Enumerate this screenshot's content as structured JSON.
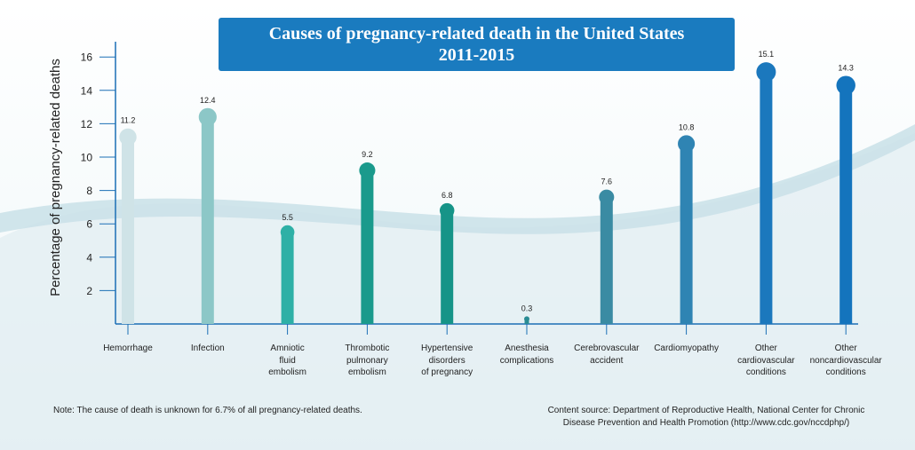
{
  "chart_data": {
    "type": "bar",
    "title_lines": [
      "Causes of pregnancy-related death in the United States",
      "2011-2015"
    ],
    "ylabel": "Percentage of pregnancy-related deaths",
    "xlabel": "",
    "ylim": [
      0,
      17
    ],
    "yticks": [
      2,
      4,
      6,
      8,
      10,
      12,
      14,
      16
    ],
    "categories": [
      [
        "Hemorrhage"
      ],
      [
        "Infection"
      ],
      [
        "Amniotic",
        "fluid",
        "embolism"
      ],
      [
        "Thrombotic",
        "pulmonary",
        "embolism"
      ],
      [
        "Hypertensive",
        "disorders",
        "of pregnancy"
      ],
      [
        "Anesthesia",
        "complications"
      ],
      [
        "Cerebrovascular",
        "accident"
      ],
      [
        "Cardiomyopathy"
      ],
      [
        "Other",
        "cardiovascular",
        "conditions"
      ],
      [
        "Other",
        "noncardiovascular",
        "conditions"
      ]
    ],
    "values": [
      11.2,
      12.4,
      5.5,
      9.2,
      6.8,
      0.3,
      7.6,
      10.8,
      15.1,
      14.3
    ],
    "value_labels": [
      "11.2",
      "12.4",
      "5.5",
      "9.2",
      "6.8",
      "0.3",
      "7.6",
      "10.8",
      "15.1",
      "14.3"
    ],
    "bar_colors": [
      "#cfe3e7",
      "#8cc7c7",
      "#2eb0a6",
      "#1a9a8c",
      "#169488",
      "#2a8c94",
      "#3a8ba3",
      "#2f84b3",
      "#1b78bd",
      "#1474bd"
    ],
    "grid": false,
    "legend": "none"
  },
  "footer": {
    "note": "Note: The cause of death is unknown for 6.7% of all pregnancy-related deaths.",
    "source_lines": [
      "Content source: Department of Reproductive Health, National Center for Chronic",
      "Disease Prevention and Health Promotion (http://www.cdc.gov/nccdphp/)"
    ]
  },
  "colors": {
    "title_bg": "#1a7bbf",
    "axis": "#1b6fb5",
    "wave_light": "#d8e9ee",
    "wave_mid": "#c4dfe6"
  }
}
